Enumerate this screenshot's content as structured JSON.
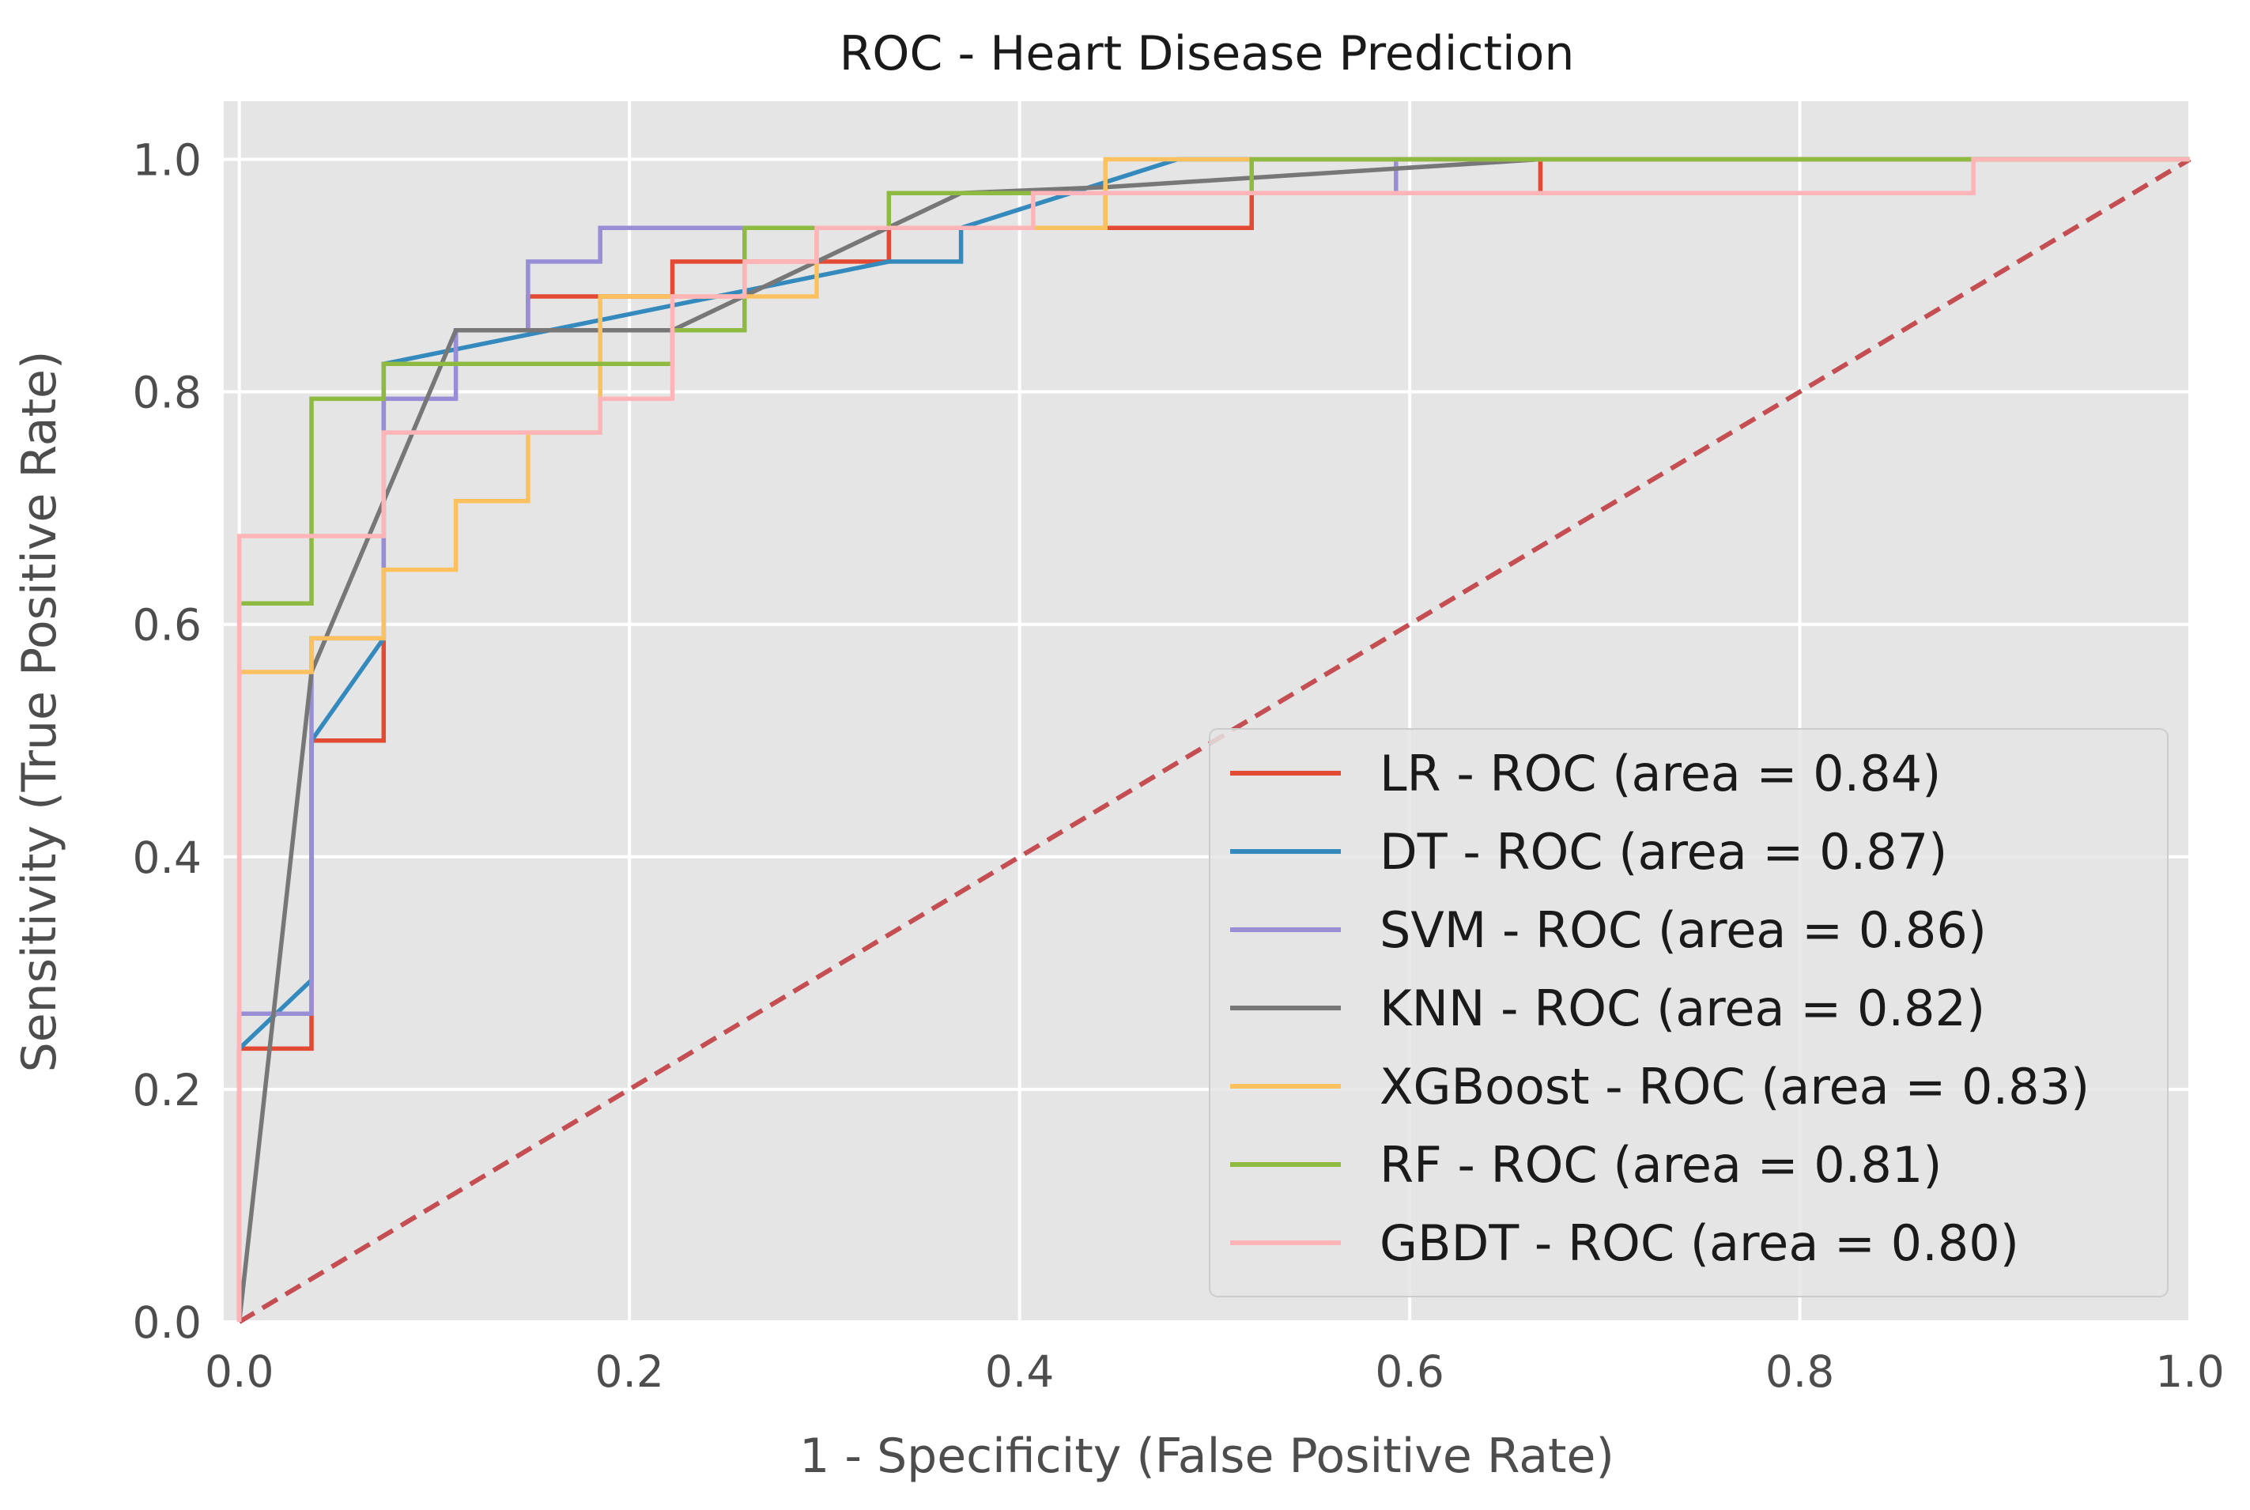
{
  "chart_data": {
    "type": "line",
    "title": "ROC - Heart Disease Prediction",
    "xlabel": "1 - Specificity (False Positive Rate)",
    "ylabel": "Sensitivity (True Positive Rate)",
    "xlim": [
      -0.008,
      1.0
    ],
    "ylim": [
      0.0,
      1.05
    ],
    "xticks": [
      0.0,
      0.2,
      0.4,
      0.6,
      0.8,
      1.0
    ],
    "xtick_labels": [
      "0.0",
      "0.2",
      "0.4",
      "0.6",
      "0.8",
      "1.0"
    ],
    "yticks": [
      0.0,
      0.2,
      0.4,
      0.6,
      0.8,
      1.0
    ],
    "ytick_labels": [
      "0.0",
      "0.2",
      "0.4",
      "0.6",
      "0.8",
      "1.0"
    ],
    "grid": true,
    "background": "#e5e5e5",
    "legend_position": "lower-right",
    "series": [
      {
        "name": "LR - ROC (area = 0.84)",
        "color": "#E24A33",
        "x": [
          0,
          0,
          0.037,
          0.037,
          0.074,
          0.074,
          0.111,
          0.111,
          0.148,
          0.148,
          0.185,
          0.185,
          0.222,
          0.222,
          0.259,
          0.259,
          0.296,
          0.296,
          0.333,
          0.333,
          0.37,
          0.37,
          0.407,
          0.407,
          0.444,
          0.444,
          0.519,
          0.519,
          0.593,
          0.593,
          0.667,
          0.667,
          1.0
        ],
        "y": [
          0,
          0.235,
          0.235,
          0.5,
          0.5,
          0.824,
          0.824,
          0.853,
          0.853,
          0.882,
          0.882,
          0.882,
          0.882,
          0.912,
          0.912,
          0.912,
          0.912,
          0.912,
          0.912,
          0.941,
          0.941,
          0.941,
          0.941,
          0.941,
          0.941,
          0.941,
          0.941,
          0.971,
          0.971,
          0.971,
          0.971,
          1.0,
          1.0
        ]
      },
      {
        "name": "DT - ROC (area = 0.87)",
        "color": "#348ABD",
        "x": [
          0,
          0,
          0.037,
          0.037,
          0.074,
          0.074,
          0.333,
          0.333,
          0.37,
          0.37,
          0.481,
          1.0
        ],
        "y": [
          0,
          0.235,
          0.294,
          0.5,
          0.588,
          0.824,
          0.912,
          0.912,
          0.912,
          0.941,
          1.0,
          1.0
        ]
      },
      {
        "name": "SVM - ROC (area = 0.86)",
        "color": "#988ED5",
        "x": [
          0,
          0,
          0.037,
          0.037,
          0.074,
          0.074,
          0.111,
          0.111,
          0.148,
          0.148,
          0.185,
          0.185,
          0.333,
          0.333,
          0.444,
          0.444,
          0.593,
          0.593,
          1.0
        ],
        "y": [
          0,
          0.265,
          0.265,
          0.588,
          0.588,
          0.794,
          0.794,
          0.853,
          0.853,
          0.912,
          0.912,
          0.941,
          0.941,
          0.941,
          0.941,
          0.971,
          0.971,
          1.0,
          1.0
        ]
      },
      {
        "name": "KNN - ROC (area = 0.82)",
        "color": "#777777",
        "x": [
          0,
          0.037,
          0.111,
          0.222,
          0.37,
          0.444,
          0.667,
          1.0
        ],
        "y": [
          0,
          0.559,
          0.853,
          0.853,
          0.971,
          0.976,
          1.0,
          1.0
        ]
      },
      {
        "name": "XGBoost - ROC (area = 0.83)",
        "color": "#FBC15E",
        "x": [
          0,
          0,
          0.037,
          0.037,
          0.074,
          0.074,
          0.111,
          0.111,
          0.148,
          0.148,
          0.185,
          0.185,
          0.296,
          0.296,
          0.407,
          0.407,
          0.444,
          0.444,
          1.0
        ],
        "y": [
          0,
          0.559,
          0.559,
          0.588,
          0.588,
          0.647,
          0.647,
          0.706,
          0.706,
          0.765,
          0.765,
          0.882,
          0.882,
          0.941,
          0.941,
          0.941,
          0.941,
          1.0,
          1.0
        ]
      },
      {
        "name": "RF - ROC (area = 0.81)",
        "color": "#8EBA42",
        "x": [
          0,
          0,
          0.037,
          0.037,
          0.074,
          0.074,
          0.222,
          0.222,
          0.259,
          0.259,
          0.333,
          0.333,
          0.519,
          0.519,
          1.0
        ],
        "y": [
          0,
          0.618,
          0.618,
          0.794,
          0.794,
          0.824,
          0.824,
          0.853,
          0.853,
          0.941,
          0.941,
          0.971,
          0.971,
          1.0,
          1.0
        ]
      },
      {
        "name": "GBDT - ROC (area = 0.80)",
        "color": "#FFB5B8",
        "x": [
          0,
          0,
          0.074,
          0.074,
          0.185,
          0.185,
          0.222,
          0.222,
          0.259,
          0.259,
          0.296,
          0.296,
          0.407,
          0.407,
          0.889,
          0.889,
          1.0
        ],
        "y": [
          0,
          0.676,
          0.676,
          0.765,
          0.765,
          0.794,
          0.794,
          0.882,
          0.882,
          0.912,
          0.912,
          0.941,
          0.941,
          0.971,
          0.971,
          1.0,
          1.0
        ]
      }
    ],
    "reference_line": {
      "color": "#C44E52",
      "style": "dashed",
      "x": [
        0,
        1
      ],
      "y": [
        0,
        1
      ]
    }
  }
}
